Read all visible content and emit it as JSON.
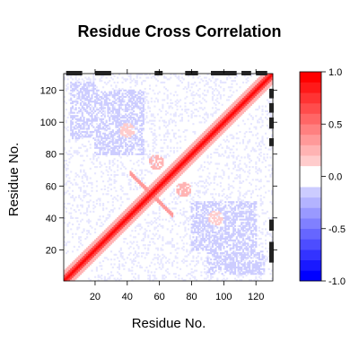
{
  "chart_data": {
    "type": "heatmap",
    "title": "Residue Cross Correlation",
    "xlabel": "Residue No.",
    "ylabel": "Residue No.",
    "n_residues": 130,
    "xlim": [
      1,
      130
    ],
    "ylim": [
      1,
      130
    ],
    "x_ticks": [
      20,
      40,
      60,
      80,
      100,
      120
    ],
    "y_ticks": [
      20,
      40,
      60,
      80,
      100,
      120
    ],
    "x_tick_labels": [
      "20",
      "40",
      "60",
      "80",
      "100",
      "120"
    ],
    "y_tick_labels": [
      "20",
      "40",
      "60",
      "80",
      "100",
      "120"
    ],
    "colorbar": {
      "range": [
        -1.0,
        1.0
      ],
      "ticks": [
        -1.0,
        -0.5,
        0.0,
        0.5,
        1.0
      ],
      "tick_labels": [
        "-1.0",
        "-0.5",
        "0.0",
        "0.5",
        "1.0"
      ],
      "low_color": "#0000ff",
      "mid_color": "#ffffff",
      "high_color": "#ff0000"
    },
    "secondary_structure_top": [
      [
        2,
        12
      ],
      [
        20,
        30
      ],
      [
        57,
        62
      ],
      [
        76,
        84
      ],
      [
        92,
        108
      ],
      [
        111,
        117
      ],
      [
        120,
        127
      ]
    ],
    "secondary_structure_right": [
      [
        12,
        25
      ],
      [
        32,
        39
      ],
      [
        85,
        90
      ],
      [
        96,
        103
      ],
      [
        106,
        112
      ],
      [
        115,
        121
      ]
    ],
    "correlation_features": [
      {
        "kind": "diagonal",
        "value": 1.0,
        "band_width": 3
      },
      {
        "kind": "near_diagonal_positive",
        "value": 0.5
      },
      {
        "kind": "cross_positive",
        "center": [
          55,
          55
        ],
        "value": 0.35
      },
      {
        "kind": "positive_patch",
        "center": [
          75,
          58
        ],
        "value": 0.3
      },
      {
        "kind": "positive_patch",
        "center": [
          58,
          75
        ],
        "value": 0.3
      },
      {
        "kind": "positive_patch",
        "center": [
          95,
          40
        ],
        "value": 0.2
      },
      {
        "kind": "positive_patch",
        "center": [
          40,
          95
        ],
        "value": 0.2
      },
      {
        "kind": "negative_region",
        "range_x": [
          20,
          50
        ],
        "range_y": [
          80,
          120
        ],
        "value": -0.25
      },
      {
        "kind": "negative_region",
        "range_x": [
          80,
          120
        ],
        "range_y": [
          20,
          50
        ],
        "value": -0.25
      },
      {
        "kind": "negative_region",
        "range_x": [
          5,
          20
        ],
        "range_y": [
          90,
          125
        ],
        "value": -0.2
      },
      {
        "kind": "negative_region",
        "range_x": [
          90,
          125
        ],
        "range_y": [
          5,
          20
        ],
        "value": -0.2
      }
    ]
  }
}
